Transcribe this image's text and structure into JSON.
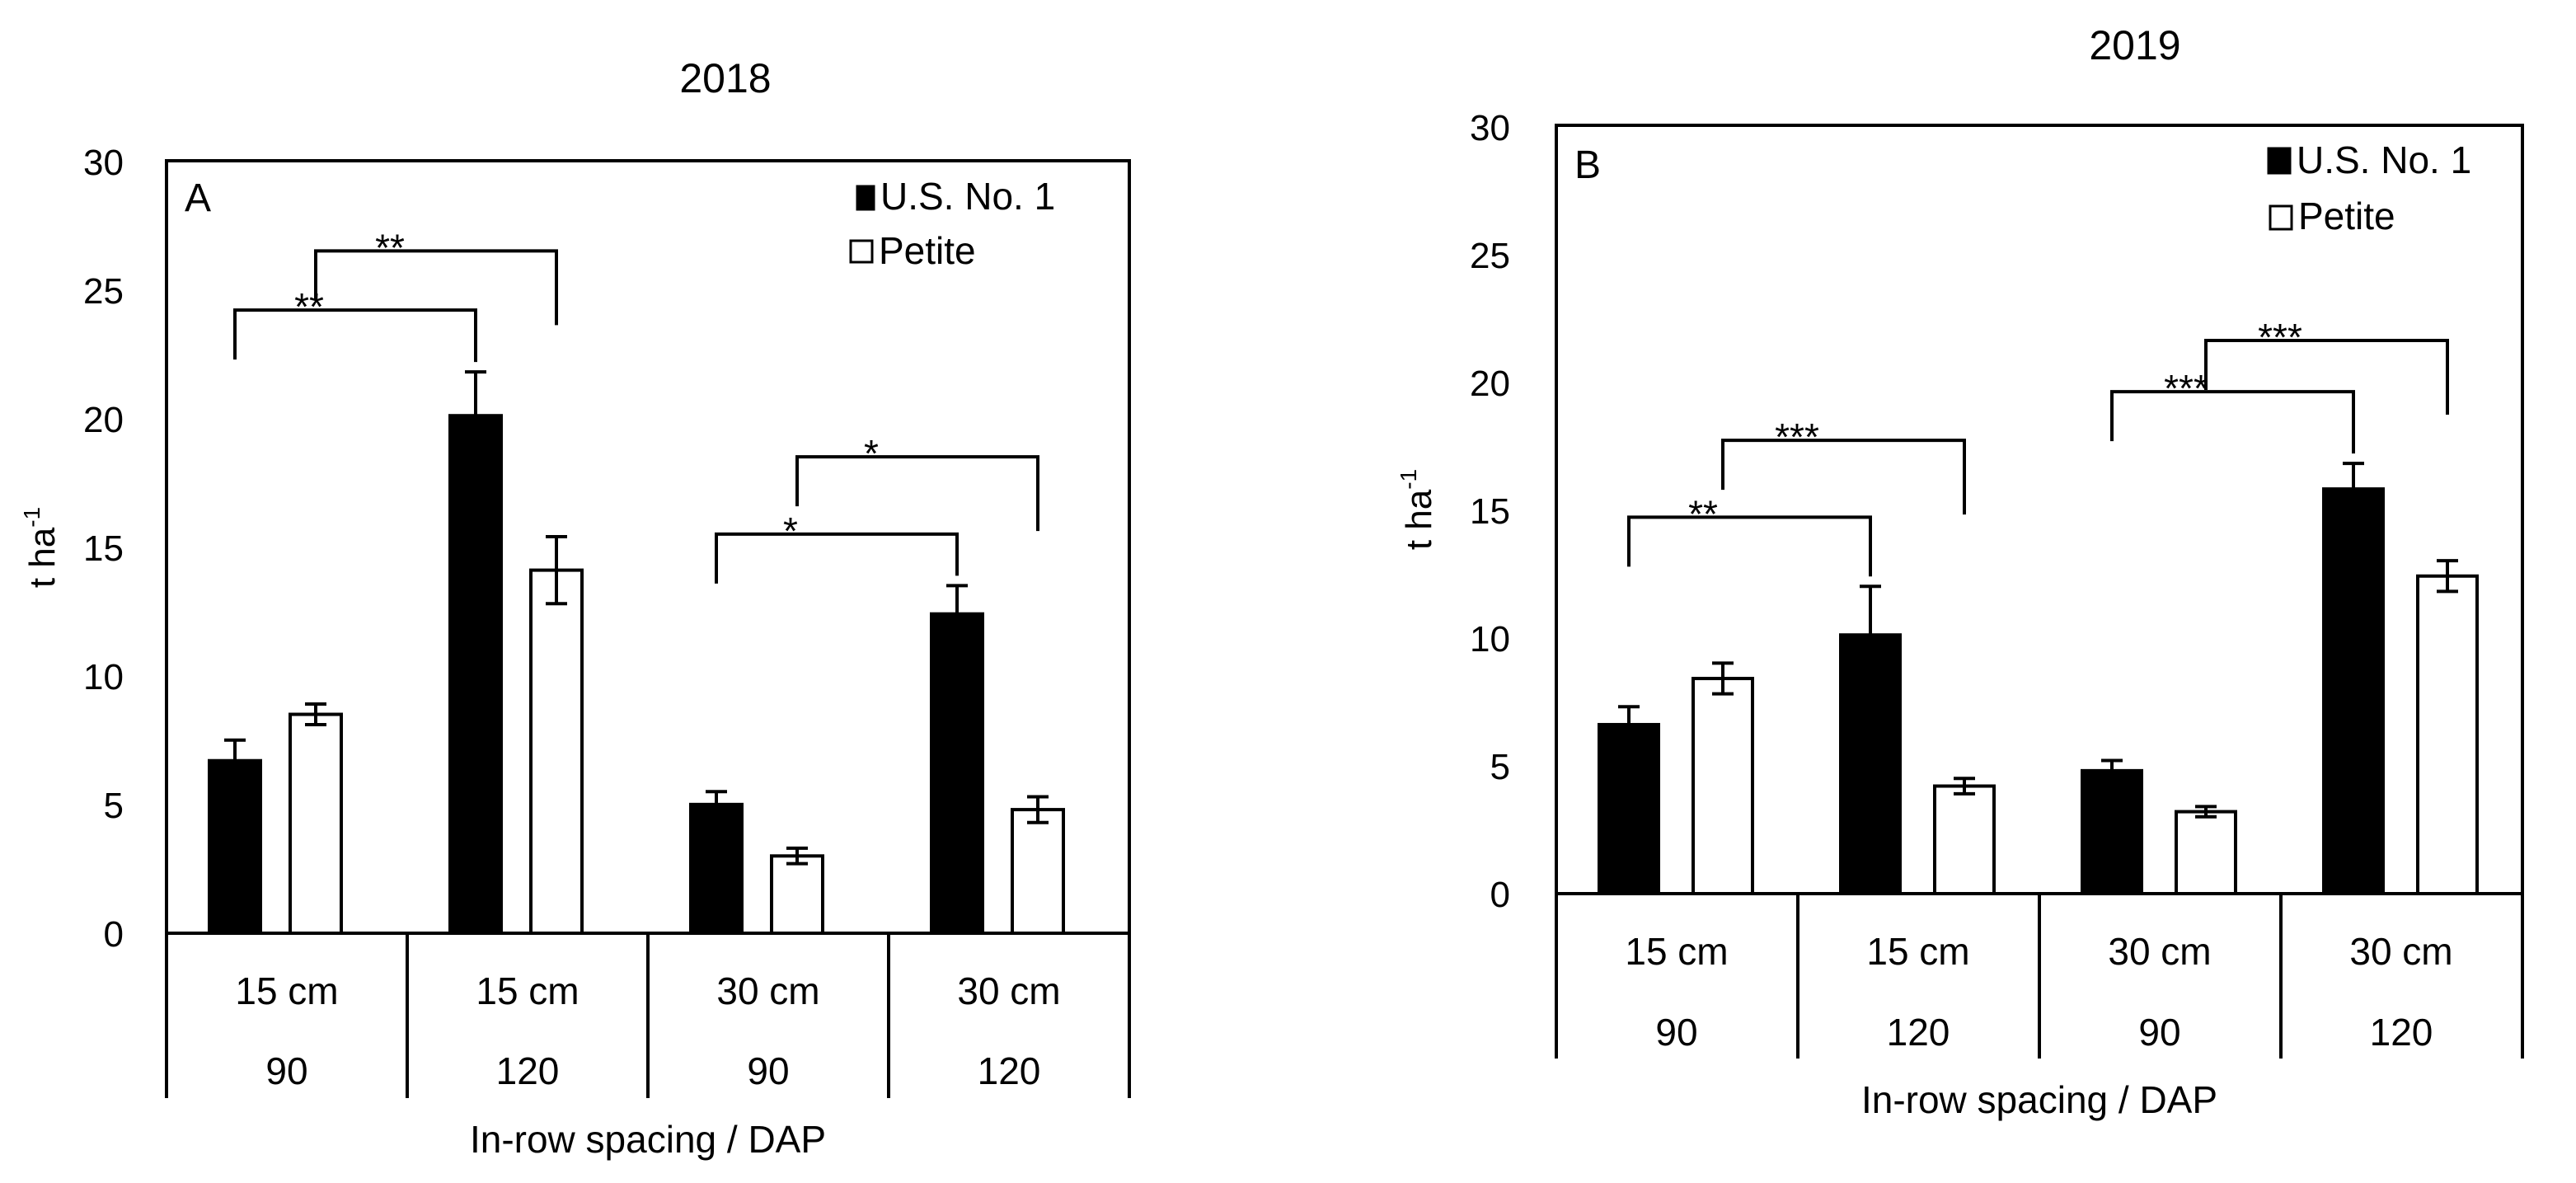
{
  "chart_data": [
    {
      "type": "bar",
      "title": "2018",
      "panel_label": "A",
      "ylabel_main": "t ha",
      "ylabel_sup": "-1",
      "xlabel": "In-row spacing / DAP",
      "ylim": [
        0,
        30
      ],
      "yticks": [
        "0",
        "5",
        "10",
        "15",
        "20",
        "25",
        "30"
      ],
      "categories": [
        {
          "spacing": "15 cm",
          "dap": "90"
        },
        {
          "spacing": "15 cm",
          "dap": "120"
        },
        {
          "spacing": "30 cm",
          "dap": "90"
        },
        {
          "spacing": "30 cm",
          "dap": "120"
        }
      ],
      "series": [
        {
          "name": "U.S. No. 1",
          "color": "#000000",
          "values": [
            6.7,
            20.1,
            5.0,
            12.4
          ],
          "errors": [
            0.8,
            1.7,
            0.5,
            1.1
          ]
        },
        {
          "name": "Petite",
          "color": "#ffffff",
          "values": [
            8.5,
            14.1,
            3.0,
            4.8
          ],
          "errors": [
            0.4,
            1.3,
            0.3,
            0.5
          ]
        }
      ],
      "annotations": [
        {
          "label": "**",
          "from": {
            "cat": 0,
            "series": 0
          },
          "to": {
            "cat": 1,
            "series": 0
          },
          "level": 24.2
        },
        {
          "label": "**",
          "from": {
            "cat": 0,
            "series": 1
          },
          "to": {
            "cat": 1,
            "series": 1
          },
          "level": 26.5
        },
        {
          "label": "*",
          "from": {
            "cat": 2,
            "series": 0
          },
          "to": {
            "cat": 3,
            "series": 0
          },
          "level": 15.5
        },
        {
          "label": "*",
          "from": {
            "cat": 2,
            "series": 1
          },
          "to": {
            "cat": 3,
            "series": 1
          },
          "level": 18.5
        }
      ]
    },
    {
      "type": "bar",
      "title": "2019",
      "panel_label": "B",
      "ylabel_main": "t ha",
      "ylabel_sup": "-1",
      "xlabel": "In-row spacing / DAP",
      "ylim": [
        0,
        30
      ],
      "yticks": [
        "0",
        "5",
        "10",
        "15",
        "20",
        "25",
        "30"
      ],
      "categories": [
        {
          "spacing": "15 cm",
          "dap": "90"
        },
        {
          "spacing": "15 cm",
          "dap": "120"
        },
        {
          "spacing": "30 cm",
          "dap": "90"
        },
        {
          "spacing": "30 cm",
          "dap": "120"
        }
      ],
      "series": [
        {
          "name": "U.S. No. 1",
          "color": "#000000",
          "values": [
            6.6,
            10.1,
            4.8,
            15.8
          ],
          "errors": [
            0.7,
            1.9,
            0.4,
            1.0
          ]
        },
        {
          "name": "Petite",
          "color": "#ffffff",
          "values": [
            8.4,
            4.2,
            3.2,
            12.4
          ],
          "errors": [
            0.6,
            0.3,
            0.2,
            0.6
          ]
        }
      ],
      "annotations": [
        {
          "label": "**",
          "from": {
            "cat": 0,
            "series": 0
          },
          "to": {
            "cat": 1,
            "series": 0
          },
          "level": 14.7
        },
        {
          "label": "***",
          "from": {
            "cat": 0,
            "series": 1
          },
          "to": {
            "cat": 1,
            "series": 1
          },
          "level": 17.7
        },
        {
          "label": "***",
          "from": {
            "cat": 2,
            "series": 0
          },
          "to": {
            "cat": 3,
            "series": 0
          },
          "level": 19.6
        },
        {
          "label": "***",
          "from": {
            "cat": 2,
            "series": 1
          },
          "to": {
            "cat": 3,
            "series": 1
          },
          "level": 21.6
        }
      ]
    }
  ]
}
